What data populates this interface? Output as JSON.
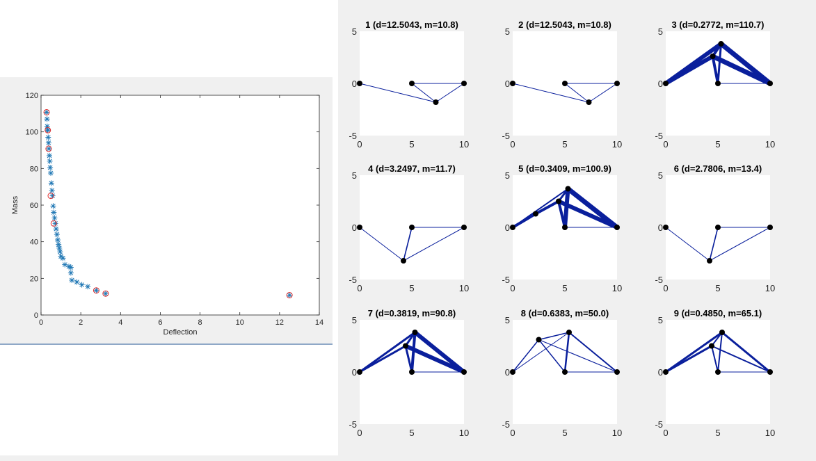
{
  "chart_data": [
    {
      "type": "scatter",
      "xlabel": "Deflection",
      "ylabel": "Mass",
      "xlim": [
        0,
        14
      ],
      "ylim": [
        0,
        120
      ],
      "xticks": [
        0,
        2,
        4,
        6,
        8,
        10,
        12,
        14
      ],
      "yticks": [
        0,
        20,
        40,
        60,
        80,
        100,
        120
      ],
      "grid": false,
      "marker_color": "#1f77b4",
      "circle_color": "#e03030",
      "series": [
        {
          "marker": "asterisk",
          "x": [
            0.28,
            0.3,
            0.31,
            0.33,
            0.34,
            0.36,
            0.38,
            0.4,
            0.42,
            0.44,
            0.46,
            0.49,
            0.52,
            0.55,
            0.58,
            0.61,
            0.64,
            0.68,
            0.72,
            0.76,
            0.8,
            0.84,
            0.88,
            0.92,
            0.96,
            1.0,
            1.1,
            1.2,
            1.4,
            1.5,
            1.5,
            1.55,
            1.8,
            2.05,
            2.35,
            2.78,
            3.25,
            12.5
          ],
          "y": [
            110.7,
            107.0,
            103.0,
            101.0,
            100.9,
            97.0,
            94.0,
            90.8,
            87.0,
            84.0,
            80.5,
            77.5,
            72.0,
            68.0,
            65.1,
            59.5,
            56.0,
            53.0,
            50.0,
            47.0,
            44.0,
            41.0,
            38.5,
            36.5,
            34.5,
            32.0,
            31.0,
            27.5,
            26.5,
            26.0,
            23.0,
            19.0,
            18.0,
            16.5,
            15.5,
            13.4,
            11.7,
            10.8
          ]
        },
        {
          "marker": "circle",
          "x": [
            0.28,
            0.34,
            0.38,
            0.49,
            0.64,
            2.78,
            3.25,
            12.5
          ],
          "y": [
            110.7,
            100.9,
            90.8,
            65.1,
            50.0,
            13.4,
            11.7,
            10.8
          ]
        }
      ]
    },
    {
      "type": "truss",
      "title": "1 (d=12.5043, m=10.8)",
      "xlim": [
        0,
        10
      ],
      "ylim": [
        -5,
        5
      ],
      "xticks": [
        0,
        5,
        10
      ],
      "yticks": [
        -5,
        0,
        5
      ],
      "nodes": [
        [
          0,
          0
        ],
        [
          5,
          0
        ],
        [
          10,
          0
        ],
        [
          7.3,
          -1.8
        ]
      ],
      "members": [
        [
          0,
          3,
          1
        ],
        [
          1,
          3,
          1
        ],
        [
          1,
          2,
          1
        ],
        [
          2,
          3,
          1
        ]
      ]
    },
    {
      "type": "truss",
      "title": "2 (d=12.5043, m=10.8)",
      "xlim": [
        0,
        10
      ],
      "ylim": [
        -5,
        5
      ],
      "xticks": [
        0,
        5,
        10
      ],
      "yticks": [
        -5,
        0,
        5
      ],
      "nodes": [
        [
          0,
          0
        ],
        [
          5,
          0
        ],
        [
          10,
          0
        ],
        [
          7.3,
          -1.8
        ]
      ],
      "members": [
        [
          0,
          3,
          1
        ],
        [
          1,
          3,
          1
        ],
        [
          1,
          2,
          1
        ],
        [
          2,
          3,
          1
        ]
      ]
    },
    {
      "type": "truss",
      "title": "3 (d=0.2772, m=110.7)",
      "xlim": [
        0,
        10
      ],
      "ylim": [
        -5,
        5
      ],
      "xticks": [
        0,
        5,
        10
      ],
      "yticks": [
        -5,
        0,
        5
      ],
      "nodes": [
        [
          0,
          0
        ],
        [
          5,
          0
        ],
        [
          10,
          0
        ],
        [
          5.3,
          3.8
        ],
        [
          4.5,
          2.6
        ]
      ],
      "members": [
        [
          0,
          3,
          6
        ],
        [
          0,
          4,
          6
        ],
        [
          4,
          3,
          4
        ],
        [
          4,
          1,
          4
        ],
        [
          1,
          3,
          3
        ],
        [
          3,
          2,
          7
        ],
        [
          4,
          2,
          7
        ],
        [
          1,
          2,
          1
        ]
      ]
    },
    {
      "type": "truss",
      "title": "4 (d=3.2497, m=11.7)",
      "xlim": [
        0,
        10
      ],
      "ylim": [
        -5,
        5
      ],
      "xticks": [
        0,
        5,
        10
      ],
      "yticks": [
        -5,
        0,
        5
      ],
      "nodes": [
        [
          0,
          0
        ],
        [
          5,
          0
        ],
        [
          10,
          0
        ],
        [
          4.2,
          -3.2
        ]
      ],
      "members": [
        [
          0,
          3,
          1
        ],
        [
          3,
          1,
          1.6
        ],
        [
          1,
          2,
          1
        ],
        [
          3,
          2,
          1
        ]
      ]
    },
    {
      "type": "truss",
      "title": "5 (d=0.3409, m=100.9)",
      "xlim": [
        0,
        10
      ],
      "ylim": [
        -5,
        5
      ],
      "xticks": [
        0,
        5,
        10
      ],
      "yticks": [
        -5,
        0,
        5
      ],
      "nodes": [
        [
          0,
          0
        ],
        [
          5,
          0
        ],
        [
          10,
          0
        ],
        [
          5.3,
          3.7
        ],
        [
          4.4,
          2.5
        ],
        [
          2.2,
          1.3
        ]
      ],
      "members": [
        [
          0,
          5,
          4
        ],
        [
          5,
          4,
          4
        ],
        [
          4,
          3,
          3
        ],
        [
          0,
          3,
          2
        ],
        [
          4,
          1,
          4
        ],
        [
          1,
          3,
          6
        ],
        [
          3,
          2,
          7
        ],
        [
          4,
          2,
          6
        ],
        [
          1,
          2,
          1
        ]
      ]
    },
    {
      "type": "truss",
      "title": "6 (d=2.7806, m=13.4)",
      "xlim": [
        0,
        10
      ],
      "ylim": [
        -5,
        5
      ],
      "xticks": [
        0,
        5,
        10
      ],
      "yticks": [
        -5,
        0,
        5
      ],
      "nodes": [
        [
          0,
          0
        ],
        [
          5,
          0
        ],
        [
          10,
          0
        ],
        [
          4.2,
          -3.2
        ]
      ],
      "members": [
        [
          0,
          3,
          1
        ],
        [
          3,
          1,
          1.6
        ],
        [
          1,
          2,
          1
        ],
        [
          3,
          2,
          1
        ]
      ]
    },
    {
      "type": "truss",
      "title": "7 (d=0.3819, m=90.8)",
      "xlim": [
        0,
        10
      ],
      "ylim": [
        -5,
        5
      ],
      "xticks": [
        0,
        5,
        10
      ],
      "yticks": [
        -5,
        0,
        5
      ],
      "nodes": [
        [
          0,
          0
        ],
        [
          5,
          0
        ],
        [
          10,
          0
        ],
        [
          5.3,
          3.8
        ],
        [
          4.4,
          2.5
        ]
      ],
      "members": [
        [
          0,
          3,
          3
        ],
        [
          0,
          4,
          3
        ],
        [
          4,
          3,
          3
        ],
        [
          4,
          1,
          3
        ],
        [
          1,
          3,
          4
        ],
        [
          3,
          2,
          6
        ],
        [
          4,
          2,
          6
        ],
        [
          1,
          2,
          1
        ]
      ]
    },
    {
      "type": "truss",
      "title": "8 (d=0.6383, m=50.0)",
      "xlim": [
        0,
        10
      ],
      "ylim": [
        -5,
        5
      ],
      "xticks": [
        0,
        5,
        10
      ],
      "yticks": [
        -5,
        0,
        5
      ],
      "nodes": [
        [
          0,
          0
        ],
        [
          5,
          0
        ],
        [
          10,
          0
        ],
        [
          5.4,
          3.8
        ],
        [
          2.5,
          3.1
        ]
      ],
      "members": [
        [
          0,
          4,
          1.5
        ],
        [
          4,
          3,
          1.5
        ],
        [
          4,
          1,
          1.5
        ],
        [
          3,
          1,
          2.5
        ],
        [
          3,
          2,
          2
        ],
        [
          4,
          2,
          1.2
        ],
        [
          0,
          3,
          1
        ],
        [
          1,
          2,
          1
        ]
      ]
    },
    {
      "type": "truss",
      "title": "9 (d=0.4850, m=65.1)",
      "xlim": [
        0,
        10
      ],
      "ylim": [
        -5,
        5
      ],
      "xticks": [
        0,
        5,
        10
      ],
      "yticks": [
        -5,
        0,
        5
      ],
      "nodes": [
        [
          0,
          0
        ],
        [
          5,
          0
        ],
        [
          10,
          0
        ],
        [
          5.4,
          3.8
        ],
        [
          4.4,
          2.5
        ]
      ],
      "members": [
        [
          0,
          3,
          3
        ],
        [
          0,
          4,
          3
        ],
        [
          4,
          3,
          2
        ],
        [
          4,
          1,
          2
        ],
        [
          1,
          3,
          2
        ],
        [
          3,
          2,
          3
        ],
        [
          4,
          2,
          2
        ],
        [
          1,
          2,
          1
        ]
      ]
    }
  ]
}
